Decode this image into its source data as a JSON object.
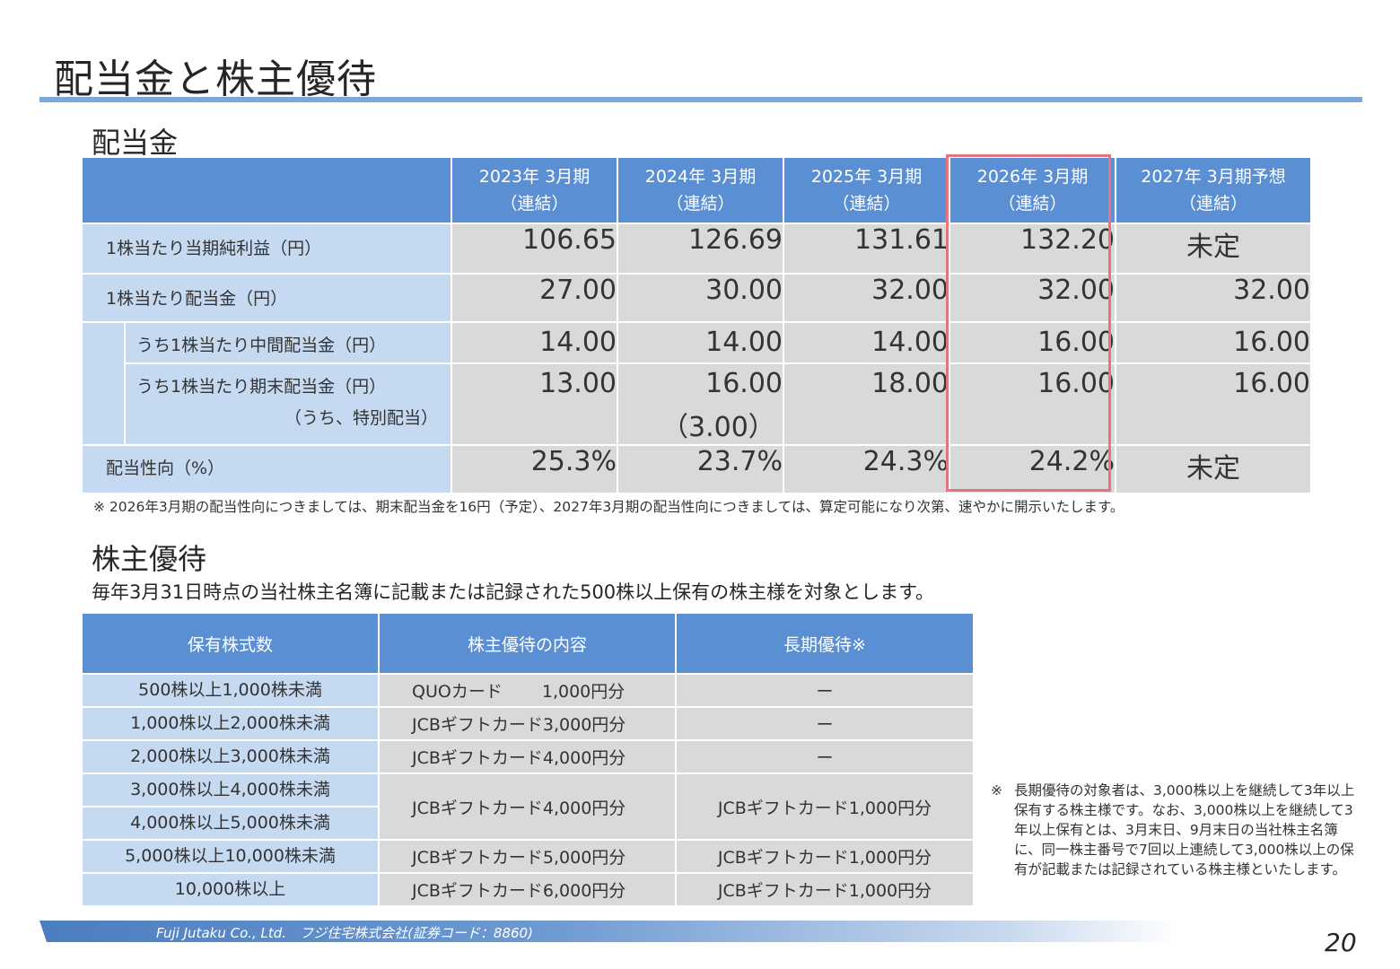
{
  "title": "配当金と株主優待",
  "dividend": {
    "heading": "配当金",
    "columns": [
      {
        "line1": "2023年 3月期",
        "line2": "（連結）"
      },
      {
        "line1": "2024年 3月期",
        "line2": "（連結）"
      },
      {
        "line1": "2025年 3月期",
        "line2": "（連結）"
      },
      {
        "line1": "2026年 3月期",
        "line2": "（連結）"
      },
      {
        "line1": "2027年 3月期予想",
        "line2": "（連結）"
      }
    ],
    "rows": {
      "eps": {
        "label": "1株当たり当期純利益（円）",
        "values": [
          "106.65",
          "126.69",
          "131.61",
          "132.20",
          "未定"
        ]
      },
      "dps": {
        "label": "1株当たり配当金（円）",
        "values": [
          "27.00",
          "30.00",
          "32.00",
          "32.00",
          "32.00"
        ]
      },
      "interim": {
        "label": "うち1株当たり中間配当金（円）",
        "values": [
          "14.00",
          "14.00",
          "14.00",
          "16.00",
          "16.00"
        ]
      },
      "yearend": {
        "label": "うち1株当たり期末配当金（円）",
        "values": [
          "13.00",
          "16.00",
          "18.00",
          "16.00",
          "16.00"
        ]
      },
      "special": {
        "label": "（うち、特別配当）",
        "values": [
          "",
          "（3.00）",
          "",
          "",
          ""
        ]
      },
      "payout": {
        "label": "配当性向（%）",
        "values": [
          "25.3%",
          "23.7%",
          "24.3%",
          "24.2%",
          "未定"
        ]
      }
    },
    "note": "※ 2026年3月期の配当性向につきましては、期末配当金を16円（予定）、2027年3月期の配当性向につきましては、算定可能になり次第、速やかに開示いたします。",
    "highlight_color": "#e8737a"
  },
  "yutai": {
    "heading": "株主優待",
    "intro": "毎年3月31日時点の当社株主名簿に記載または記録された500株以上保有の株主様を対象とします。",
    "headers": [
      "保有株式数",
      "株主優待の内容",
      "長期優待※"
    ],
    "rows": [
      {
        "shares": "500株以上1,000株未満",
        "content": "QUOカード　　 1,000円分",
        "long": "ー"
      },
      {
        "shares": "1,000株以上2,000株未満",
        "content": "JCBギフトカード3,000円分",
        "long": "ー"
      },
      {
        "shares": "2,000株以上3,000株未満",
        "content": "JCBギフトカード4,000円分",
        "long": "ー"
      },
      {
        "shares": "3,000株以上4,000株未満",
        "content": "JCBギフトカード4,000円分",
        "long": "JCBギフトカード1,000円分"
      },
      {
        "shares": "4,000株以上5,000株未満"
      },
      {
        "shares": "5,000株以上10,000株未満",
        "content": "JCBギフトカード5,000円分",
        "long": "JCBギフトカード1,000円分"
      },
      {
        "shares": "10,000株以上",
        "content": "JCBギフトカード6,000円分",
        "long": "JCBギフトカード1,000円分"
      }
    ],
    "note_mark": "※",
    "note": "長期優待の対象者は、3,000株以上を継続して3年以上保有する株主様です。なお、3,000株以上を継続して3年以上保有とは、3月末日、9月末日の当社株主名簿に、同一株主番号で7回以上連続して3,000株以上の保有が記載または記録されている株主様といたします。"
  },
  "footer": {
    "company": "Fuji Jutaku Co., Ltd.　フジ住宅株式会社(証券コード：8860)",
    "page_number": "20"
  },
  "colors": {
    "header_blue": "#5b8fd4",
    "label_blue": "#c5d9f1",
    "cell_gray": "#d9d9d9",
    "rule_blue": "#7ba7d9"
  }
}
